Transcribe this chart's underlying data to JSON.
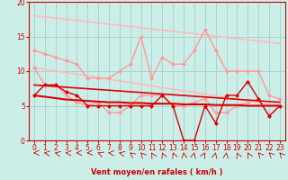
{
  "bg_color": "#cceee8",
  "grid_color": "#aad4ce",
  "xlabel": "Vent moyen/en rafales ( km/h )",
  "xlim": [
    -0.5,
    23.5
  ],
  "ylim": [
    0,
    20
  ],
  "yticks": [
    0,
    5,
    10,
    15,
    20
  ],
  "xticks": [
    0,
    1,
    2,
    3,
    4,
    5,
    6,
    7,
    8,
    9,
    10,
    11,
    12,
    13,
    14,
    15,
    16,
    17,
    18,
    19,
    20,
    21,
    22,
    23
  ],
  "trend_upper": {
    "x": [
      0,
      23
    ],
    "y": [
      18.0,
      14.0
    ],
    "color": "#ffbbbb",
    "lw": 1.2
  },
  "trend_lower": {
    "x": [
      0,
      23
    ],
    "y": [
      10.5,
      5.0
    ],
    "color": "#ffbbbb",
    "lw": 1.2
  },
  "series_pink_upper": {
    "x": [
      0,
      1,
      2,
      3,
      4,
      5,
      6,
      7,
      8,
      9,
      10,
      11,
      12,
      13,
      14,
      15,
      16,
      17,
      18,
      19,
      20,
      21,
      22,
      23
    ],
    "y": [
      13,
      12.5,
      12,
      11.5,
      11,
      9,
      9,
      9,
      10,
      11,
      15,
      9,
      12,
      11,
      11,
      13,
      16,
      13,
      10,
      10,
      10,
      10,
      6.5,
      6
    ],
    "color": "#ff9999",
    "lw": 1.0,
    "ms": 2.5
  },
  "series_pink_lower": {
    "x": [
      0,
      1,
      2,
      3,
      4,
      5,
      6,
      7,
      8,
      9,
      10,
      11,
      12,
      13,
      14,
      15,
      16,
      17,
      18,
      19,
      20,
      21,
      22,
      23
    ],
    "y": [
      10.5,
      8,
      8,
      6.5,
      5.5,
      5,
      5.5,
      4,
      4,
      5,
      6.5,
      6.5,
      6.5,
      5,
      5,
      5.5,
      6,
      4,
      4,
      5,
      5.5,
      6,
      3.5,
      5
    ],
    "color": "#ff9999",
    "lw": 1.0,
    "ms": 2.5
  },
  "series_red_flat": {
    "x": [
      0,
      1,
      2,
      3,
      4,
      5,
      6,
      7,
      8,
      9,
      10,
      11,
      12,
      13,
      14,
      15,
      16,
      17,
      18,
      19,
      20,
      21,
      22,
      23
    ],
    "y": [
      6.5,
      6.3,
      6.1,
      5.9,
      5.8,
      5.7,
      5.6,
      5.5,
      5.5,
      5.4,
      5.4,
      5.3,
      5.3,
      5.3,
      5.2,
      5.2,
      5.2,
      5.1,
      5.1,
      5.1,
      5.0,
      5.0,
      5.0,
      5.0
    ],
    "color": "#dd0000",
    "lw": 1.5,
    "ms": 0
  },
  "series_red_trend": {
    "x": [
      0,
      23
    ],
    "y": [
      8.0,
      5.5
    ],
    "color": "#dd0000",
    "lw": 1.2,
    "ms": 0
  },
  "series_red_lower": {
    "x": [
      0,
      1,
      2,
      3,
      4,
      5,
      6,
      7,
      8,
      9,
      10,
      11,
      12,
      13,
      14,
      15,
      16,
      17,
      18,
      19,
      20,
      21,
      22,
      23
    ],
    "y": [
      6.5,
      8,
      8,
      7,
      6.5,
      5,
      5,
      5,
      5,
      5,
      5,
      5,
      6.5,
      5,
      0,
      0,
      5,
      2.5,
      6.5,
      6.5,
      8.5,
      6,
      3.5,
      5
    ],
    "color": "#dd0000",
    "lw": 1.0,
    "ms": 2.5
  }
}
